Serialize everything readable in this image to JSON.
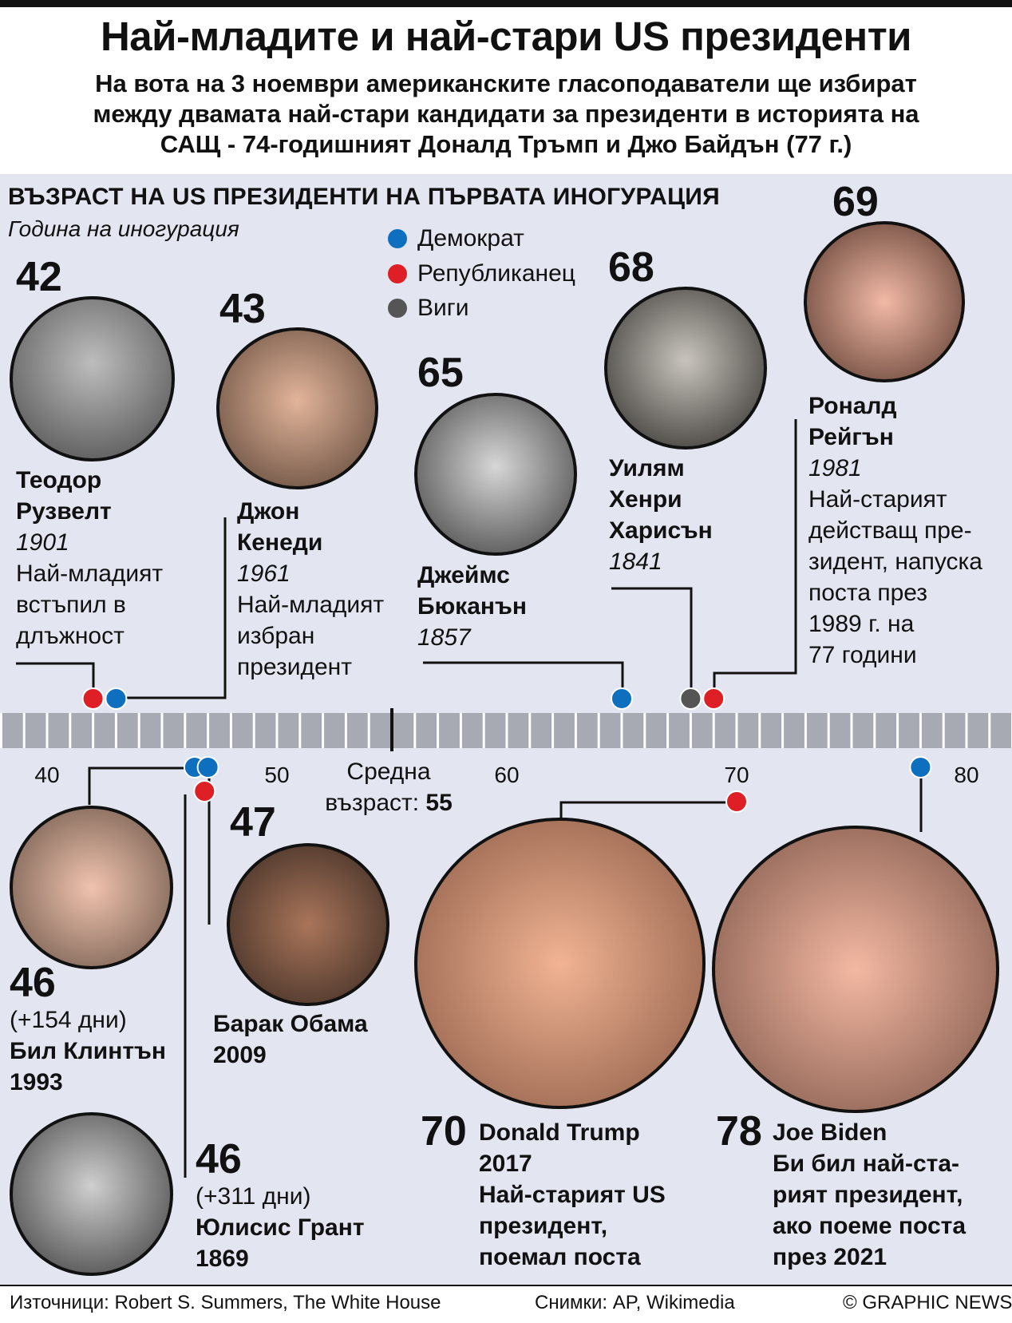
{
  "header": {
    "title": "Най-младите и най-стари US президенти",
    "subtitle_lines": [
      "На вота на 3 ноември американските гласоподаватели ще избират",
      "между двамата най-стари кандидати за президенти в историята на",
      "САЩ - 74-годишният Доналд Тръмп и Джо Байдън (77 г.)"
    ]
  },
  "chart_data": {
    "type": "scatter",
    "title": "ВЪЗРАСТ НА US ПРЕЗИДЕНТИ НА ПЪРВАТА ИНОГУРАЦИЯ",
    "subtitle": "Година на иногурация",
    "xlim": [
      36,
      82
    ],
    "ticks": [
      40,
      50,
      60,
      70,
      80
    ],
    "average": {
      "value": 55,
      "label_line1": "Средна",
      "label_line2": "възраст:",
      "value_label": "55"
    },
    "legend": [
      {
        "label": "Демократ",
        "color": "#0d6fbe"
      },
      {
        "label": "Републиканец",
        "color": "#de1f26"
      },
      {
        "label": "Виги",
        "color": "#555555"
      }
    ],
    "colors": {
      "Democrat": "#0d6fbe",
      "Republican": "#de1f26",
      "Whig": "#555555"
    },
    "points": [
      {
        "name": "Теодор Рузвелт",
        "name_lines": [
          "Теодор",
          "Рузвелт"
        ],
        "age": 42,
        "age_label": "42",
        "year": "1901",
        "party": "Republican",
        "note_lines": [
          "Най-младият",
          "встъпил в",
          "длъжност"
        ]
      },
      {
        "name": "Джон Кенеди",
        "name_lines": [
          "Джон",
          "Кенеди"
        ],
        "age": 43,
        "age_label": "43",
        "year": "1961",
        "party": "Democrat",
        "note_lines": [
          "Най-младият",
          "избран",
          "президент"
        ]
      },
      {
        "name": "Джеймс Бюканън",
        "name_lines": [
          "Джеймс",
          "Бюканън"
        ],
        "age": 65,
        "age_label": "65",
        "year": "1857",
        "party": "Democrat",
        "note_lines": []
      },
      {
        "name": "Уилям Хенри Харисън",
        "name_lines": [
          "Уилям",
          "Хенри",
          "Харисън"
        ],
        "age": 68,
        "age_label": "68",
        "year": "1841",
        "party": "Whig",
        "note_lines": []
      },
      {
        "name": "Роналд Рейгън",
        "name_lines": [
          "Роналд",
          "Рейгън"
        ],
        "age": 69,
        "age_label": "69",
        "year": "1981",
        "party": "Republican",
        "note_lines": [
          "Най-старият",
          "действащ пре-",
          "зидент, напуска",
          "поста през",
          "1989 г. на",
          "77 години"
        ]
      },
      {
        "name": "Бил Клинтън",
        "name_lines": [
          "Бил Клинтън"
        ],
        "age": 46.42,
        "age_label": "46",
        "extra": "(+154 дни)",
        "year": "1993",
        "party": "Democrat",
        "note_lines": []
      },
      {
        "name": "Юлисис Грант",
        "name_lines": [
          "Юлисис Грант"
        ],
        "age": 46.85,
        "age_label": "46",
        "extra": "(+311 дни)",
        "year": "1869",
        "party": "Republican",
        "note_lines": []
      },
      {
        "name": "Барак Обама",
        "name_lines": [
          "Барак Обама"
        ],
        "age": 47,
        "age_label": "47",
        "year": "2009",
        "party": "Democrat",
        "note_lines": []
      },
      {
        "name": "Donald Trump",
        "name_lines": [
          "Donald Trump"
        ],
        "age": 70,
        "age_label": "70",
        "year": "2017",
        "party": "Republican",
        "note_lines": [
          "Най-старият US",
          "президент,",
          "поемал поста"
        ]
      },
      {
        "name": "Joe Biden",
        "name_lines": [
          "Joe Biden"
        ],
        "age": 78,
        "age_label": "78",
        "year": "",
        "party": "Democrat",
        "note_lines": [
          "Би бил най-ста-",
          "рият президент,",
          "ако поеме поста",
          "през 2021"
        ]
      }
    ]
  },
  "footer": {
    "sources": "Източници: Robert S. Summers, The White House",
    "photos": "Снимки: AP, Wikimedia",
    "credit": "© GRAPHIC NEWS"
  }
}
